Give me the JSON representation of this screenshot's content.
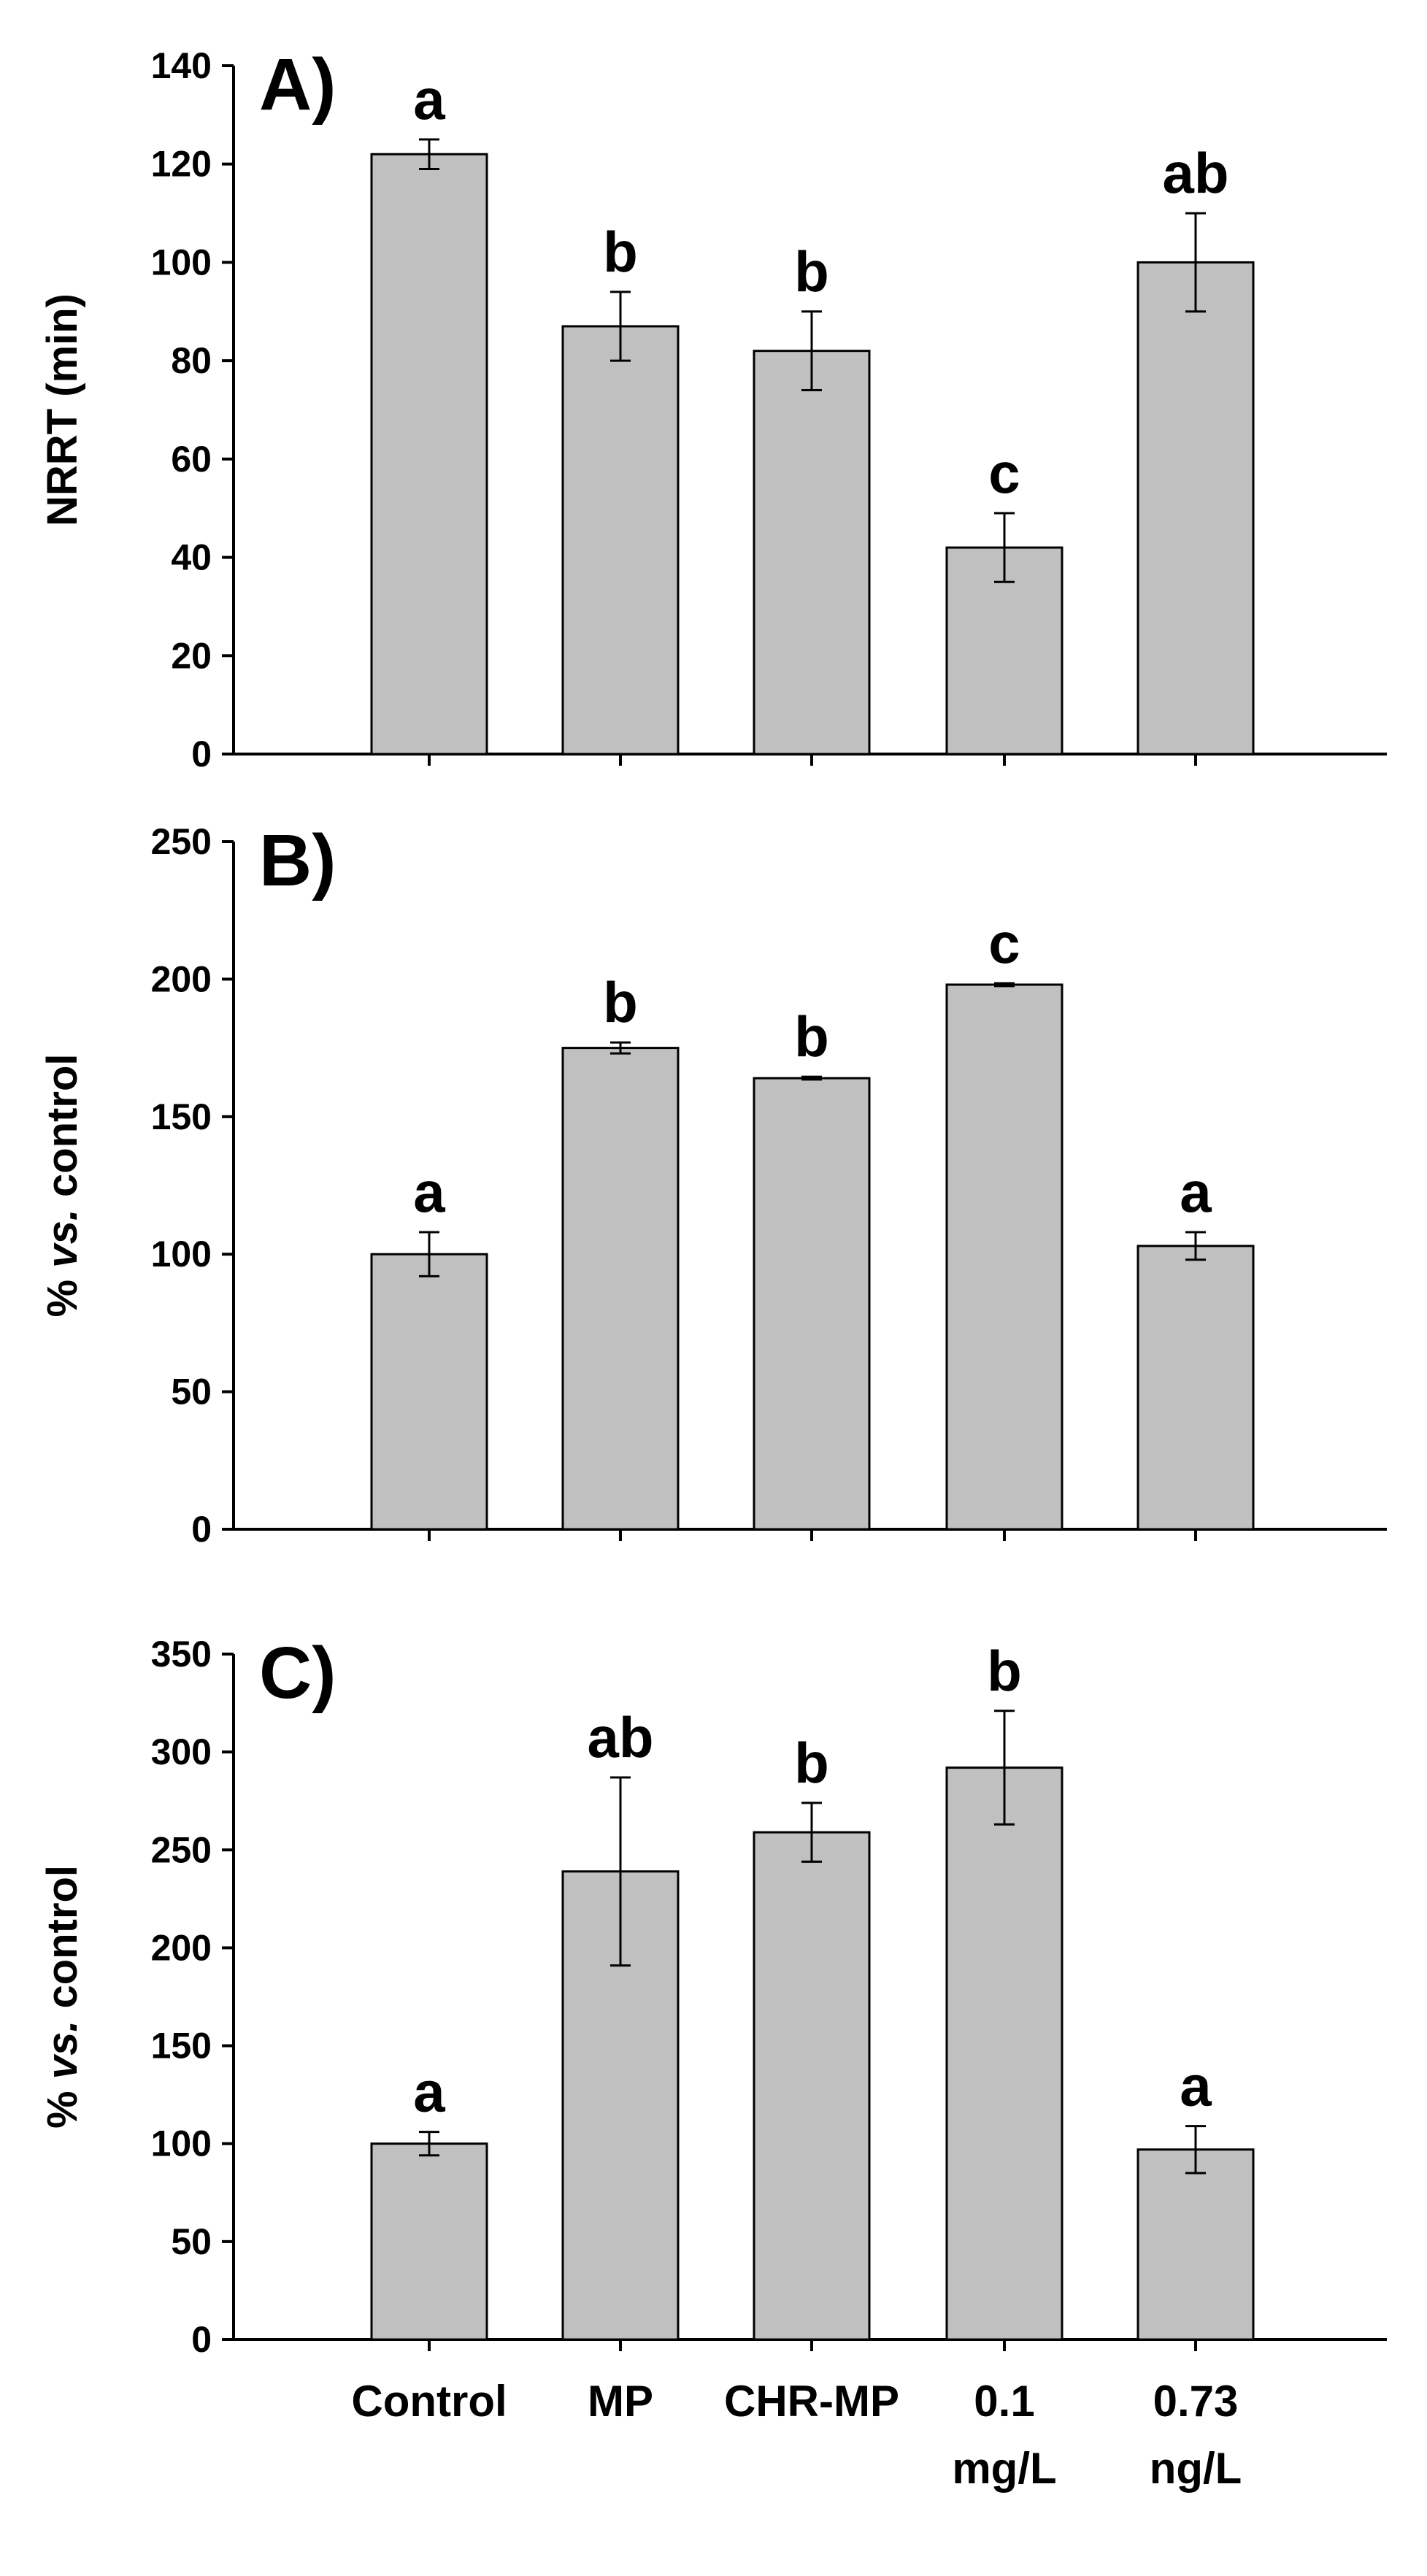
{
  "colors": {
    "bar_fill": "#c0c0c0",
    "bar_stroke": "#000000",
    "axis": "#000000"
  },
  "categories": [
    [
      "Control"
    ],
    [
      "MP"
    ],
    [
      "CHR-MP"
    ],
    [
      "0.1",
      "mg/L"
    ],
    [
      "0.73",
      "ng/L"
    ]
  ],
  "chart_data": [
    {
      "type": "bar",
      "panel_label": "A)",
      "ylabel": "NRRT (min)",
      "ylabel_italic_part": "",
      "ylim": [
        0,
        140
      ],
      "ytick_step": 20,
      "yticks": [
        "0",
        "20",
        "40",
        "60",
        "80",
        "100",
        "120",
        "140"
      ],
      "values": [
        122,
        87,
        82,
        42,
        100
      ],
      "errors": [
        3,
        7,
        8,
        7,
        10
      ],
      "letters": [
        "a",
        "b",
        "b",
        "c",
        "ab"
      ]
    },
    {
      "type": "bar",
      "panel_label": "B)",
      "ylabel_prefix": "% ",
      "ylabel_italic_part": "vs.",
      "ylabel_suffix": " control",
      "ylim": [
        0,
        250
      ],
      "ytick_step": 50,
      "yticks": [
        "0",
        "50",
        "100",
        "150",
        "200",
        "250"
      ],
      "values": [
        100,
        175,
        164,
        198,
        103
      ],
      "errors": [
        8,
        2,
        0.5,
        0.5,
        5
      ],
      "letters": [
        "a",
        "b",
        "b",
        "c",
        "a"
      ]
    },
    {
      "type": "bar",
      "panel_label": "C)",
      "ylabel_prefix": "% ",
      "ylabel_italic_part": "vs.",
      "ylabel_suffix": " control",
      "ylim": [
        0,
        350
      ],
      "ytick_step": 50,
      "yticks": [
        "0",
        "50",
        "100",
        "150",
        "200",
        "250",
        "300",
        "350"
      ],
      "values": [
        100,
        239,
        259,
        292,
        97
      ],
      "errors": [
        6,
        48,
        15,
        29,
        12
      ],
      "letters": [
        "a",
        "ab",
        "b",
        "b",
        "a"
      ]
    }
  ]
}
